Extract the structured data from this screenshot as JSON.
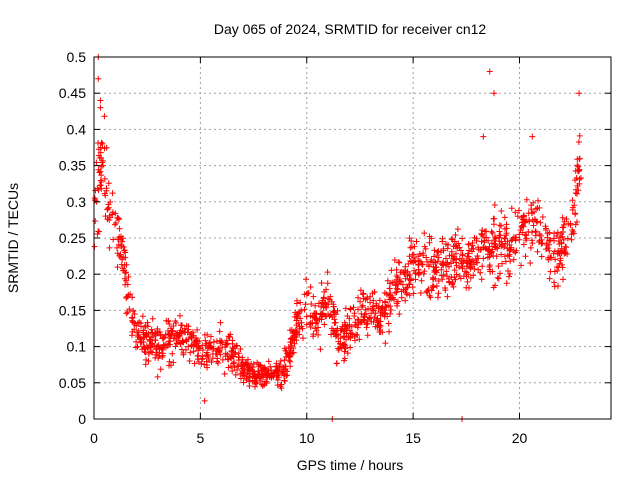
{
  "chart_data": {
    "type": "scatter",
    "title": "Day 065 of 2024, SRMTID for receiver cn12",
    "xlabel": "GPS time / hours",
    "ylabel": "SRMTID / TECUs",
    "xlim": [
      0,
      24.3
    ],
    "ylim": [
      0,
      0.5
    ],
    "grid": true,
    "marker": "+",
    "marker_color": "#ff0000",
    "x_ticks": [
      0,
      5,
      10,
      15,
      20
    ],
    "x_tick_labels": [
      "0",
      "5",
      "10",
      "15",
      "20"
    ],
    "y_ticks": [
      0,
      0.05,
      0.1,
      0.15,
      0.2,
      0.25,
      0.3,
      0.35,
      0.4,
      0.45,
      0.5
    ],
    "y_tick_labels": [
      "0",
      "0.05",
      "0.1",
      "0.15",
      "0.2",
      "0.25",
      "0.3",
      "0.35",
      "0.4",
      "0.45",
      "0.5"
    ],
    "series": [
      {
        "name": "SRMTID",
        "trend": {
          "x": [
            0.0,
            0.2,
            0.4,
            0.6,
            0.8,
            1.0,
            1.3,
            1.6,
            2.0,
            2.5,
            3.0,
            3.5,
            4.0,
            4.5,
            5.0,
            5.5,
            6.0,
            6.5,
            7.0,
            7.5,
            8.0,
            8.5,
            9.0,
            9.5,
            10.0,
            10.5,
            11.0,
            11.5,
            12.0,
            12.5,
            13.0,
            13.5,
            14.0,
            14.5,
            15.0,
            15.5,
            16.0,
            16.5,
            17.0,
            17.5,
            18.0,
            18.5,
            19.0,
            19.5,
            20.0,
            20.5,
            21.0,
            21.5,
            22.0,
            22.5,
            22.9
          ],
          "y": [
            0.27,
            0.32,
            0.38,
            0.31,
            0.28,
            0.27,
            0.24,
            0.17,
            0.12,
            0.11,
            0.1,
            0.11,
            0.12,
            0.1,
            0.1,
            0.09,
            0.1,
            0.09,
            0.07,
            0.06,
            0.06,
            0.06,
            0.07,
            0.13,
            0.16,
            0.13,
            0.17,
            0.1,
            0.12,
            0.14,
            0.15,
            0.13,
            0.17,
            0.19,
            0.21,
            0.22,
            0.2,
            0.21,
            0.22,
            0.21,
            0.23,
            0.24,
            0.24,
            0.24,
            0.26,
            0.27,
            0.26,
            0.22,
            0.23,
            0.28,
            0.37
          ],
          "spread": [
            0.06,
            0.07,
            0.07,
            0.07,
            0.06,
            0.05,
            0.05,
            0.04,
            0.035,
            0.035,
            0.035,
            0.035,
            0.035,
            0.035,
            0.035,
            0.03,
            0.03,
            0.03,
            0.025,
            0.02,
            0.02,
            0.02,
            0.03,
            0.035,
            0.04,
            0.04,
            0.04,
            0.035,
            0.035,
            0.04,
            0.04,
            0.04,
            0.045,
            0.045,
            0.05,
            0.05,
            0.05,
            0.05,
            0.05,
            0.05,
            0.05,
            0.05,
            0.05,
            0.05,
            0.05,
            0.05,
            0.05,
            0.05,
            0.05,
            0.06,
            0.06
          ]
        },
        "outliers": [
          {
            "x": 0.2,
            "y": 0.5
          },
          {
            "x": 0.2,
            "y": 0.47
          },
          {
            "x": 0.3,
            "y": 0.44
          },
          {
            "x": 0.3,
            "y": 0.43
          },
          {
            "x": 0.4,
            "y": 0.38
          },
          {
            "x": 18.6,
            "y": 0.48
          },
          {
            "x": 18.8,
            "y": 0.45
          },
          {
            "x": 18.3,
            "y": 0.39
          },
          {
            "x": 20.6,
            "y": 0.39
          },
          {
            "x": 22.8,
            "y": 0.45
          },
          {
            "x": 11.2,
            "y": 0.0
          },
          {
            "x": 17.3,
            "y": 0.0
          },
          {
            "x": 5.2,
            "y": 0.025
          }
        ]
      }
    ]
  }
}
